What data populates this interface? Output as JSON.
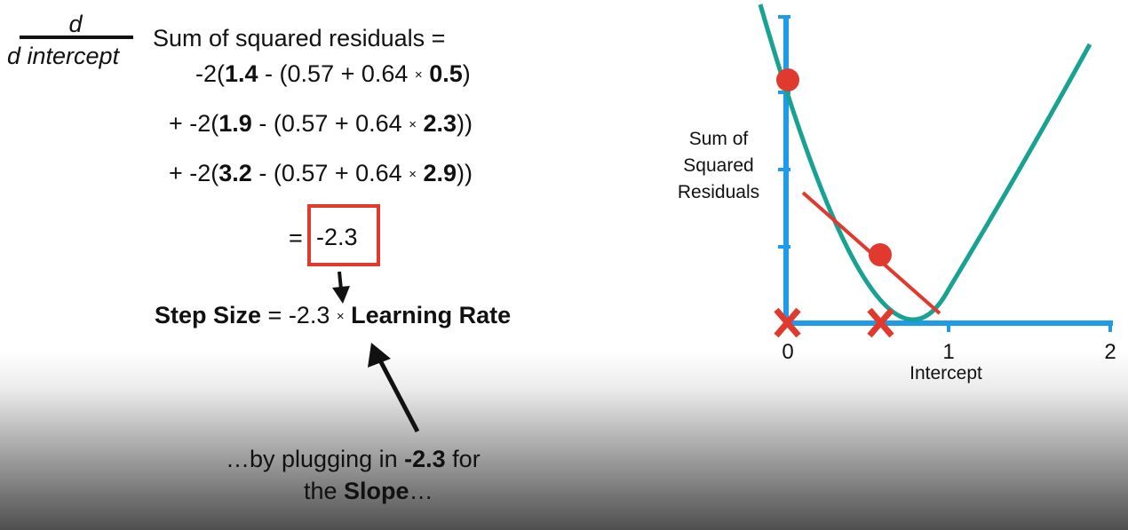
{
  "derivative": {
    "numerator": "d",
    "denominator": "d intercept",
    "lhs": "Sum of squared residuals ="
  },
  "terms": [
    {
      "prefix": "",
      "open": "-2(",
      "obs": "1.4",
      "mid": " - (0.57 + 0.64 ",
      "times": "×",
      "x": "0.5",
      "close": ")"
    },
    {
      "prefix": "+ ",
      "open": "-2(",
      "obs": "1.9",
      "mid": " - (0.57 + 0.64 ",
      "times": "×",
      "x": "2.3",
      "close": "))"
    },
    {
      "prefix": "+ ",
      "open": "-2(",
      "obs": "3.2",
      "mid": " - (0.57 + 0.64 ",
      "times": "×",
      "x": "2.9",
      "close": "))"
    }
  ],
  "result": {
    "equals": "=",
    "value": "-2.3"
  },
  "step": {
    "label": "Step Size",
    "eq": " = -2.3 ",
    "times": "×",
    "rate": "Learning Rate"
  },
  "caption": {
    "line1_pre": "…by plugging in ",
    "line1_bold": "-2.3",
    "line1_post": " for",
    "line2_pre": "the ",
    "line2_bold": "Slope",
    "line2_post": "…"
  },
  "graph": {
    "ylabel_lines": [
      "Sum of",
      "Squared",
      "Residuals"
    ],
    "xlabel": "Intercept",
    "xticks": [
      "0",
      "1",
      "2"
    ],
    "curve_color": "#17a292",
    "axis_color": "#1e9be9",
    "accent_color": "#e03a2f",
    "marker_icon": "x-mark-icon"
  }
}
